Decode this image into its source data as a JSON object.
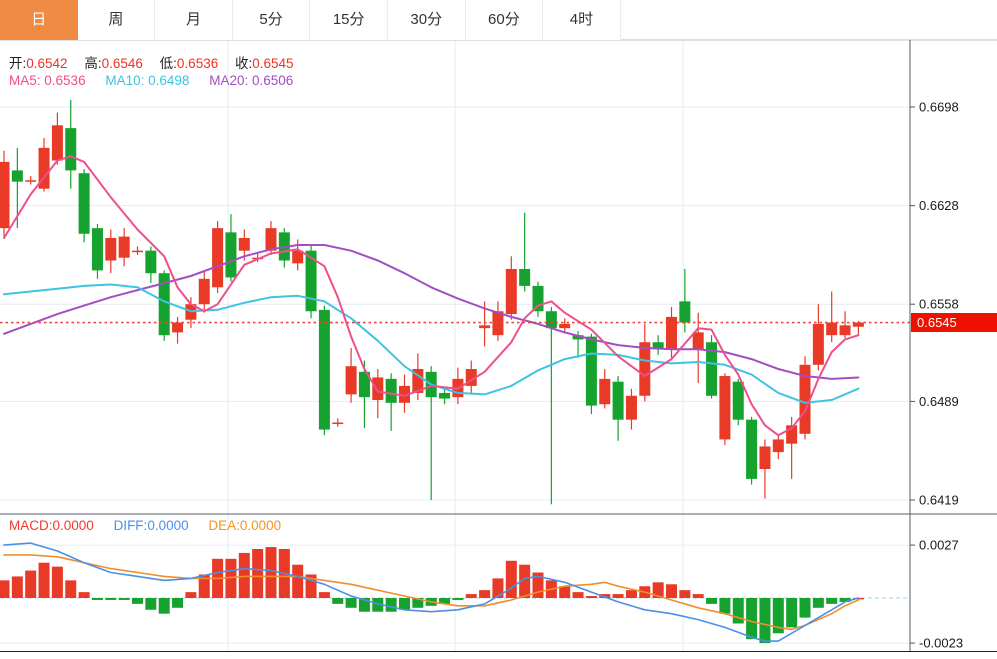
{
  "tabs": [
    {
      "label": "日",
      "active": true
    },
    {
      "label": "周",
      "active": false
    },
    {
      "label": "月",
      "active": false
    },
    {
      "label": "5分",
      "active": false
    },
    {
      "label": "15分",
      "active": false
    },
    {
      "label": "30分",
      "active": false
    },
    {
      "label": "60分",
      "active": false
    },
    {
      "label": "4时",
      "active": false
    }
  ],
  "legend": {
    "ohlc": [
      {
        "label": "开:",
        "value": "0.6542"
      },
      {
        "label": "高:",
        "value": "0.6546"
      },
      {
        "label": "低:",
        "value": "0.6536"
      },
      {
        "label": "收:",
        "value": "0.6545"
      }
    ],
    "ma": [
      {
        "label": "MA5:",
        "value": "0.6536",
        "color": "#ee4f8d"
      },
      {
        "label": "MA10:",
        "value": "0.6498",
        "color": "#3fc3e0"
      },
      {
        "label": "MA20:",
        "value": "0.6506",
        "color": "#a24ec4"
      }
    ],
    "macd": [
      {
        "label": "MACD:",
        "value": "0.0000",
        "color": "#f23b2f"
      },
      {
        "label": "DIFF:",
        "value": "0.0000",
        "color": "#4a90f2"
      },
      {
        "label": "DEA:",
        "value": "0.0000",
        "color": "#f5941e"
      }
    ]
  },
  "colors": {
    "up": "#e83a26",
    "down": "#16a22e",
    "ma5": "#ee4f8d",
    "ma10": "#3fc3e0",
    "ma20": "#a24ec4",
    "diff": "#4a90e8",
    "dea": "#f08e2e",
    "grid": "#e6ecf3",
    "macd_zero": "#9fd2ec",
    "last_price_line": "#ef4136",
    "badge": "#ee1100",
    "axis_line": "#555d66",
    "legend_value": "#f03126",
    "tab_active_bg": "#ef8b43"
  },
  "chart_data": {
    "type": "candlestick",
    "title": "",
    "timeframe_selected": "日",
    "y_axis": {
      "ticks": [
        0.6698,
        0.6628,
        0.6558,
        0.6489,
        0.6419
      ],
      "last_price": 0.6545
    },
    "macd_axis": {
      "ticks": [
        0.0027,
        -0.0023
      ]
    },
    "legend_values": {
      "open": 0.6542,
      "high": 0.6546,
      "low": 0.6536,
      "close": 0.6545,
      "ma5": 0.6536,
      "ma10": 0.6498,
      "ma20": 0.6506,
      "macd": 0.0,
      "diff": 0.0,
      "dea": 0.0
    },
    "candles": [
      [
        0.6612,
        0.6667,
        0.6606,
        0.6659
      ],
      [
        0.6653,
        0.6669,
        0.6612,
        0.6645
      ],
      [
        0.6646,
        0.6649,
        0.6643,
        0.6646
      ],
      [
        0.664,
        0.6676,
        0.6638,
        0.6669
      ],
      [
        0.666,
        0.6694,
        0.6657,
        0.6685
      ],
      [
        0.6683,
        0.6703,
        0.664,
        0.6653
      ],
      [
        0.6651,
        0.6654,
        0.6602,
        0.6608
      ],
      [
        0.6612,
        0.6615,
        0.6576,
        0.6582
      ],
      [
        0.6589,
        0.6611,
        0.658,
        0.6605
      ],
      [
        0.6591,
        0.6612,
        0.6585,
        0.6606
      ],
      [
        0.6596,
        0.6599,
        0.6593,
        0.6596
      ],
      [
        0.6596,
        0.6599,
        0.6573,
        0.658
      ],
      [
        0.658,
        0.6582,
        0.6532,
        0.6536
      ],
      [
        0.6538,
        0.6549,
        0.653,
        0.6545
      ],
      [
        0.6547,
        0.6563,
        0.6541,
        0.6558
      ],
      [
        0.6558,
        0.6581,
        0.6552,
        0.6576
      ],
      [
        0.657,
        0.6617,
        0.6566,
        0.6612
      ],
      [
        0.6609,
        0.6622,
        0.6574,
        0.6577
      ],
      [
        0.6596,
        0.6611,
        0.6589,
        0.6605
      ],
      [
        0.6591,
        0.6594,
        0.6588,
        0.6591
      ],
      [
        0.6596,
        0.6617,
        0.6593,
        0.6612
      ],
      [
        0.6609,
        0.6612,
        0.6584,
        0.6589
      ],
      [
        0.6587,
        0.6604,
        0.6582,
        0.6596
      ],
      [
        0.6596,
        0.66,
        0.6548,
        0.6553
      ],
      [
        0.6554,
        0.6557,
        0.6465,
        0.6469
      ],
      [
        0.6474,
        0.6477,
        0.6471,
        0.6474
      ],
      [
        0.6494,
        0.6527,
        0.6488,
        0.6514
      ],
      [
        0.651,
        0.6518,
        0.647,
        0.6492
      ],
      [
        0.649,
        0.6512,
        0.6477,
        0.6506
      ],
      [
        0.6505,
        0.6509,
        0.6468,
        0.6488
      ],
      [
        0.6488,
        0.6508,
        0.6481,
        0.65
      ],
      [
        0.6495,
        0.6523,
        0.649,
        0.6512
      ],
      [
        0.651,
        0.6514,
        0.6419,
        0.6492
      ],
      [
        0.6495,
        0.6498,
        0.6487,
        0.6491
      ],
      [
        0.6492,
        0.6513,
        0.6487,
        0.6505
      ],
      [
        0.65,
        0.6518,
        0.6495,
        0.6512
      ],
      [
        0.6541,
        0.656,
        0.6528,
        0.6543
      ],
      [
        0.6536,
        0.656,
        0.6532,
        0.6553
      ],
      [
        0.6551,
        0.6592,
        0.6547,
        0.6583
      ],
      [
        0.6583,
        0.6623,
        0.6567,
        0.6571
      ],
      [
        0.6571,
        0.6574,
        0.6549,
        0.6553
      ],
      [
        0.6553,
        0.6556,
        0.6416,
        0.6541
      ],
      [
        0.6541,
        0.6548,
        0.6538,
        0.6544
      ],
      [
        0.6536,
        0.6539,
        0.652,
        0.6533
      ],
      [
        0.6535,
        0.6537,
        0.648,
        0.6486
      ],
      [
        0.6487,
        0.6512,
        0.6484,
        0.6505
      ],
      [
        0.6503,
        0.6507,
        0.6461,
        0.6476
      ],
      [
        0.6476,
        0.6498,
        0.6469,
        0.6493
      ],
      [
        0.6493,
        0.6544,
        0.6489,
        0.6531
      ],
      [
        0.6531,
        0.6536,
        0.6522,
        0.6526
      ],
      [
        0.6526,
        0.6556,
        0.652,
        0.6549
      ],
      [
        0.656,
        0.6583,
        0.6538,
        0.6545
      ],
      [
        0.6526,
        0.6552,
        0.6502,
        0.6538
      ],
      [
        0.6531,
        0.6536,
        0.6491,
        0.6493
      ],
      [
        0.6462,
        0.6509,
        0.6458,
        0.6507
      ],
      [
        0.6503,
        0.6505,
        0.6472,
        0.6476
      ],
      [
        0.6476,
        0.6478,
        0.643,
        0.6434
      ],
      [
        0.6441,
        0.6462,
        0.642,
        0.6457
      ],
      [
        0.6453,
        0.6465,
        0.6448,
        0.6462
      ],
      [
        0.6459,
        0.6478,
        0.6434,
        0.6472
      ],
      [
        0.6466,
        0.6521,
        0.6462,
        0.6515
      ],
      [
        0.6515,
        0.6558,
        0.6511,
        0.6544
      ],
      [
        0.6536,
        0.6567,
        0.6531,
        0.6545
      ],
      [
        0.6536,
        0.6553,
        0.6534,
        0.6543
      ],
      [
        0.6542,
        0.6546,
        0.6536,
        0.6545
      ]
    ],
    "ma5": [
      [
        0,
        0.6605
      ],
      [
        2,
        0.6636
      ],
      [
        4,
        0.666
      ],
      [
        5,
        0.6663
      ],
      [
        6,
        0.6659
      ],
      [
        8,
        0.6634
      ],
      [
        10,
        0.6611
      ],
      [
        12,
        0.6592
      ],
      [
        13,
        0.657
      ],
      [
        14,
        0.6558
      ],
      [
        15,
        0.6553
      ],
      [
        16,
        0.6558
      ],
      [
        18,
        0.6586
      ],
      [
        20,
        0.6594
      ],
      [
        22,
        0.6597
      ],
      [
        24,
        0.6585
      ],
      [
        25,
        0.6563
      ],
      [
        26,
        0.6535
      ],
      [
        27,
        0.6512
      ],
      [
        28,
        0.6496
      ],
      [
        30,
        0.6493
      ],
      [
        32,
        0.65
      ],
      [
        34,
        0.6498
      ],
      [
        36,
        0.651
      ],
      [
        38,
        0.6531
      ],
      [
        39,
        0.6548
      ],
      [
        40,
        0.6557
      ],
      [
        41,
        0.656
      ],
      [
        42,
        0.6552
      ],
      [
        44,
        0.654
      ],
      [
        46,
        0.6521
      ],
      [
        48,
        0.6507
      ],
      [
        50,
        0.6519
      ],
      [
        52,
        0.6541
      ],
      [
        53,
        0.654
      ],
      [
        54,
        0.6522
      ],
      [
        55,
        0.6508
      ],
      [
        56,
        0.6487
      ],
      [
        57,
        0.6472
      ],
      [
        58,
        0.6465
      ],
      [
        59,
        0.647
      ],
      [
        60,
        0.6482
      ],
      [
        61,
        0.6505
      ],
      [
        62,
        0.6524
      ],
      [
        63,
        0.6533
      ],
      [
        64,
        0.6536
      ]
    ],
    "ma10": [
      [
        0,
        0.6565
      ],
      [
        2,
        0.6567
      ],
      [
        4,
        0.6569
      ],
      [
        6,
        0.6571
      ],
      [
        8,
        0.6572
      ],
      [
        10,
        0.657
      ],
      [
        12,
        0.656
      ],
      [
        14,
        0.6553
      ],
      [
        16,
        0.6554
      ],
      [
        18,
        0.6559
      ],
      [
        20,
        0.6563
      ],
      [
        22,
        0.6564
      ],
      [
        24,
        0.656
      ],
      [
        26,
        0.6548
      ],
      [
        28,
        0.6532
      ],
      [
        30,
        0.6514
      ],
      [
        32,
        0.6501
      ],
      [
        34,
        0.6495
      ],
      [
        36,
        0.6494
      ],
      [
        38,
        0.65
      ],
      [
        40,
        0.6511
      ],
      [
        42,
        0.6519
      ],
      [
        44,
        0.6523
      ],
      [
        46,
        0.6522
      ],
      [
        48,
        0.6518
      ],
      [
        50,
        0.6516
      ],
      [
        52,
        0.6517
      ],
      [
        54,
        0.6515
      ],
      [
        56,
        0.6508
      ],
      [
        58,
        0.6495
      ],
      [
        60,
        0.6488
      ],
      [
        62,
        0.649
      ],
      [
        64,
        0.6498
      ]
    ],
    "ma20": [
      [
        0,
        0.6537
      ],
      [
        2,
        0.6544
      ],
      [
        4,
        0.6551
      ],
      [
        6,
        0.6557
      ],
      [
        8,
        0.6563
      ],
      [
        10,
        0.6568
      ],
      [
        12,
        0.6573
      ],
      [
        14,
        0.6578
      ],
      [
        16,
        0.6585
      ],
      [
        18,
        0.6592
      ],
      [
        20,
        0.6597
      ],
      [
        22,
        0.66
      ],
      [
        24,
        0.66
      ],
      [
        26,
        0.6596
      ],
      [
        28,
        0.6589
      ],
      [
        30,
        0.658
      ],
      [
        32,
        0.657
      ],
      [
        34,
        0.6562
      ],
      [
        36,
        0.6555
      ],
      [
        38,
        0.6549
      ],
      [
        40,
        0.6544
      ],
      [
        42,
        0.6538
      ],
      [
        44,
        0.6533
      ],
      [
        46,
        0.6529
      ],
      [
        48,
        0.6527
      ],
      [
        50,
        0.6526
      ],
      [
        52,
        0.6526
      ],
      [
        54,
        0.6524
      ],
      [
        56,
        0.6519
      ],
      [
        58,
        0.6512
      ],
      [
        60,
        0.6507
      ],
      [
        62,
        0.6505
      ],
      [
        64,
        0.6506
      ]
    ],
    "macd_hist": [
      0.0009,
      0.0011,
      0.0014,
      0.0018,
      0.0016,
      0.0009,
      0.0003,
      -0.0001,
      -0.0001,
      -0.0001,
      -0.0003,
      -0.0006,
      -0.0008,
      -0.0005,
      0.0003,
      0.0012,
      0.002,
      0.002,
      0.0023,
      0.0025,
      0.0026,
      0.0025,
      0.0017,
      0.0012,
      0.0003,
      -0.0003,
      -0.0005,
      -0.0007,
      -0.0007,
      -0.0007,
      -0.0006,
      -0.0005,
      -0.0004,
      -0.0003,
      -0.0001,
      0.0002,
      0.0004,
      0.001,
      0.0019,
      0.0017,
      0.0013,
      0.0009,
      0.0006,
      0.0003,
      0.0001,
      0.0002,
      0.0002,
      0.0004,
      0.0006,
      0.0008,
      0.0007,
      0.0004,
      0.0002,
      -0.0003,
      -0.0008,
      -0.0013,
      -0.0021,
      -0.0023,
      -0.0018,
      -0.0015,
      -0.001,
      -0.0005,
      -0.0003,
      -0.0002,
      0.0
    ],
    "diff": [
      [
        0,
        0.0027
      ],
      [
        2,
        0.0028
      ],
      [
        4,
        0.0024
      ],
      [
        6,
        0.0018
      ],
      [
        8,
        0.0013
      ],
      [
        10,
        0.0011
      ],
      [
        12,
        0.0009
      ],
      [
        14,
        0.001
      ],
      [
        16,
        0.0013
      ],
      [
        18,
        0.0015
      ],
      [
        20,
        0.0014
      ],
      [
        22,
        0.0011
      ],
      [
        24,
        0.0007
      ],
      [
        26,
        0.0001
      ],
      [
        28,
        -0.0003
      ],
      [
        30,
        -0.0006
      ],
      [
        32,
        -0.0007
      ],
      [
        34,
        -0.0006
      ],
      [
        36,
        -0.0003
      ],
      [
        38,
        0.0005
      ],
      [
        39,
        0.001
      ],
      [
        40,
        0.0011
      ],
      [
        42,
        0.0008
      ],
      [
        44,
        0.0003
      ],
      [
        46,
        -0.0002
      ],
      [
        48,
        -0.0006
      ],
      [
        50,
        -0.0008
      ],
      [
        52,
        -0.0011
      ],
      [
        54,
        -0.0015
      ],
      [
        56,
        -0.002
      ],
      [
        57,
        -0.0022
      ],
      [
        58,
        -0.0022
      ],
      [
        60,
        -0.0014
      ],
      [
        62,
        -0.0006
      ],
      [
        63,
        -0.0002
      ],
      [
        64,
        0.0
      ]
    ],
    "dea": [
      [
        0,
        0.0022
      ],
      [
        2,
        0.0022
      ],
      [
        4,
        0.0021
      ],
      [
        6,
        0.0018
      ],
      [
        8,
        0.0015
      ],
      [
        10,
        0.0013
      ],
      [
        12,
        0.0011
      ],
      [
        14,
        0.001
      ],
      [
        16,
        0.001
      ],
      [
        18,
        0.0011
      ],
      [
        20,
        0.0011
      ],
      [
        22,
        0.0011
      ],
      [
        24,
        0.0009
      ],
      [
        26,
        0.0007
      ],
      [
        28,
        0.0004
      ],
      [
        30,
        0.0001
      ],
      [
        32,
        -0.0002
      ],
      [
        34,
        -0.0004
      ],
      [
        36,
        -0.0004
      ],
      [
        38,
        -0.0001
      ],
      [
        40,
        0.0003
      ],
      [
        42,
        0.0006
      ],
      [
        44,
        0.0007
      ],
      [
        45,
        0.0008
      ],
      [
        46,
        0.0006
      ],
      [
        48,
        0.0003
      ],
      [
        50,
        -0.0001
      ],
      [
        52,
        -0.0005
      ],
      [
        54,
        -0.0008
      ],
      [
        56,
        -0.0012
      ],
      [
        58,
        -0.0015
      ],
      [
        59,
        -0.0016
      ],
      [
        60,
        -0.0014
      ],
      [
        62,
        -0.0008
      ],
      [
        63,
        -0.0004
      ],
      [
        64,
        -0.0001
      ]
    ]
  }
}
